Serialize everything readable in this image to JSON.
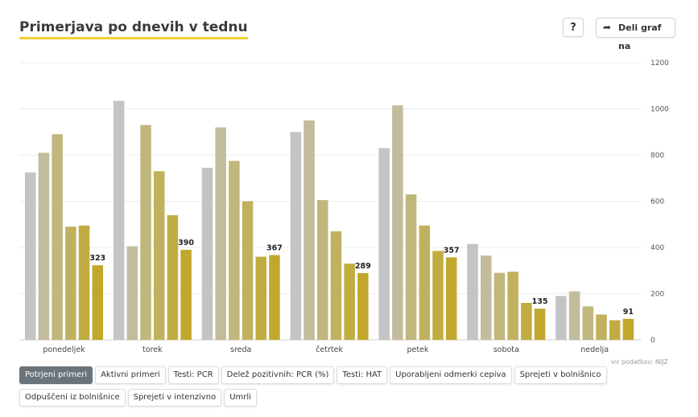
{
  "header": {
    "title": "Primerjava po dnevih v tednu",
    "help_label": "?",
    "share_label": "Deli graf na"
  },
  "source": "vir podatkov: NIJZ",
  "tabs": [
    {
      "label": "Potrjeni primeri",
      "active": true
    },
    {
      "label": "Aktivni primeri",
      "active": false
    },
    {
      "label": "Testi: PCR",
      "active": false
    },
    {
      "label": "Delež pozitivnih: PCR (%)",
      "active": false
    },
    {
      "label": "Testi: HAT",
      "active": false
    },
    {
      "label": "Uporabljeni odmerki cepiva",
      "active": false
    },
    {
      "label": "Sprejeti v bolnišnico",
      "active": false
    },
    {
      "label": "Odpuščeni iz bolnišnice",
      "active": false
    },
    {
      "label": "Sprejeti v intenzivno",
      "active": false
    },
    {
      "label": "Umrli",
      "active": false
    }
  ],
  "chart_data": {
    "type": "bar",
    "categories": [
      "ponedeljek",
      "torek",
      "sreda",
      "četrtek",
      "petek",
      "sobota",
      "nedelja"
    ],
    "series_colors": [
      "#c4c4c4",
      "#c2bc9c",
      "#c1b67c",
      "#c1b15e",
      "#c1ac42",
      "#c1a72c"
    ],
    "values": [
      [
        725,
        810,
        890,
        490,
        495,
        323
      ],
      [
        1035,
        405,
        930,
        730,
        540,
        390
      ],
      [
        745,
        920,
        775,
        600,
        360,
        367
      ],
      [
        900,
        950,
        605,
        470,
        330,
        289
      ],
      [
        830,
        1015,
        630,
        495,
        385,
        357
      ],
      [
        415,
        365,
        290,
        295,
        160,
        135
      ],
      [
        190,
        210,
        145,
        110,
        85,
        91
      ]
    ],
    "data_labels": [
      "323",
      "390",
      "367",
      "289",
      "357",
      "135",
      "91"
    ],
    "y_ticks": [
      "0",
      "200",
      "400",
      "600",
      "800",
      "1000",
      "1200"
    ],
    "ylim": [
      0,
      1200
    ],
    "y_axis_side": "right",
    "grid": true
  }
}
